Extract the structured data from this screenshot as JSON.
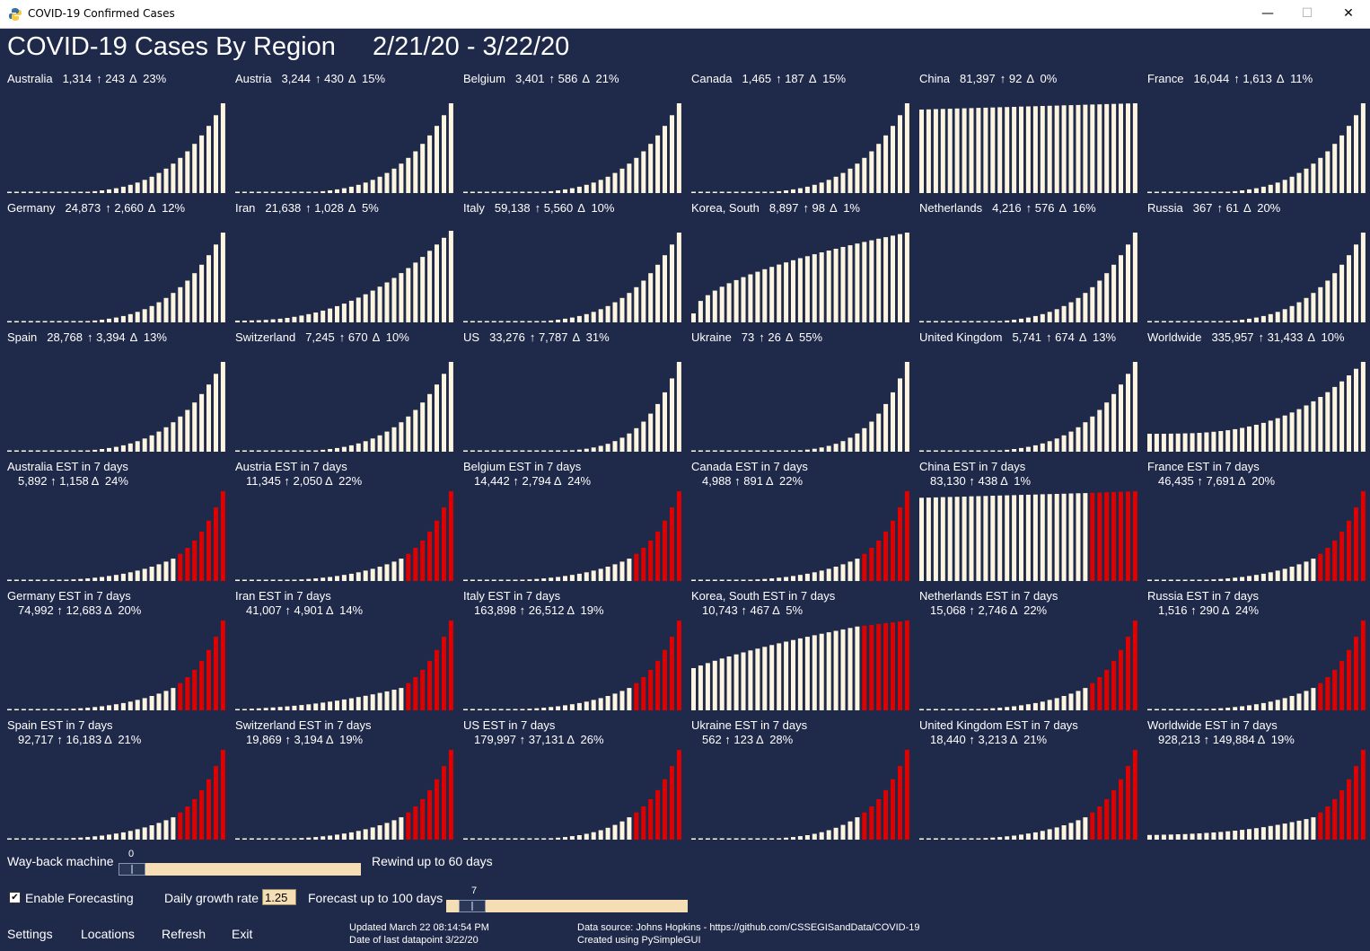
{
  "window": {
    "title": "COVID-19 Confirmed Cases",
    "minimize": "—",
    "maximize": "☐",
    "close": "✕"
  },
  "header": {
    "title": "COVID-19 Cases By Region",
    "date_range": "2/21/20 - 3/22/20"
  },
  "colors": {
    "background": "#1f2a4a",
    "bar": "#fdf5e0",
    "forecast_bar": "#e00000",
    "slider": "#f5deb3"
  },
  "regions": [
    {
      "name": "Australia",
      "cases": "1,314",
      "up": "↑ 243",
      "delta": "Δ  23%"
    },
    {
      "name": "Austria",
      "cases": "3,244",
      "up": "↑ 430",
      "delta": "Δ  15%"
    },
    {
      "name": "Belgium",
      "cases": "3,401",
      "up": "↑ 586",
      "delta": "Δ  21%"
    },
    {
      "name": "Canada",
      "cases": "1,465",
      "up": "↑ 187",
      "delta": "Δ  15%"
    },
    {
      "name": "China",
      "cases": "81,397",
      "up": "↑ 92",
      "delta": "Δ  0%"
    },
    {
      "name": "France",
      "cases": "16,044",
      "up": "↑ 1,613",
      "delta": "Δ  11%"
    },
    {
      "name": "Germany",
      "cases": "24,873",
      "up": "↑ 2,660",
      "delta": "Δ  12%"
    },
    {
      "name": "Iran",
      "cases": "21,638",
      "up": "↑ 1,028",
      "delta": "Δ  5%"
    },
    {
      "name": "Italy",
      "cases": "59,138",
      "up": "↑ 5,560",
      "delta": "Δ  10%"
    },
    {
      "name": "Korea, South",
      "cases": "8,897",
      "up": "↑ 98",
      "delta": "Δ  1%"
    },
    {
      "name": "Netherlands",
      "cases": "4,216",
      "up": "↑ 576",
      "delta": "Δ  16%"
    },
    {
      "name": "Russia",
      "cases": "367",
      "up": "↑ 61",
      "delta": "Δ  20%"
    },
    {
      "name": "Spain",
      "cases": "28,768",
      "up": "↑ 3,394",
      "delta": "Δ  13%"
    },
    {
      "name": "Switzerland",
      "cases": "7,245",
      "up": "↑ 670",
      "delta": "Δ  10%"
    },
    {
      "name": "US",
      "cases": "33,276",
      "up": "↑ 7,787",
      "delta": "Δ  31%"
    },
    {
      "name": "Ukraine",
      "cases": "73",
      "up": "↑ 26",
      "delta": "Δ  55%"
    },
    {
      "name": "United Kingdom",
      "cases": "5,741",
      "up": "↑ 674",
      "delta": "Δ  13%"
    },
    {
      "name": "Worldwide",
      "cases": "335,957",
      "up": "↑ 31,433",
      "delta": "Δ  10%"
    }
  ],
  "forecasts": [
    {
      "name": "Australia EST in 7 days",
      "stats": "5,892 ↑ 1,158 Δ  24%"
    },
    {
      "name": "Austria EST in 7 days",
      "stats": "11,345 ↑ 2,050 Δ  22%"
    },
    {
      "name": "Belgium EST in 7 days",
      "stats": "14,442 ↑ 2,794 Δ  24%"
    },
    {
      "name": "Canada EST in 7 days",
      "stats": "4,988 ↑ 891 Δ  22%"
    },
    {
      "name": "China EST in 7 days",
      "stats": "83,130 ↑ 438 Δ  1%"
    },
    {
      "name": "France EST in 7 days",
      "stats": "46,435 ↑ 7,691 Δ  20%"
    },
    {
      "name": "Germany EST in 7 days",
      "stats": "74,992 ↑ 12,683 Δ  20%"
    },
    {
      "name": "Iran EST in 7 days",
      "stats": "41,007 ↑ 4,901 Δ  14%"
    },
    {
      "name": "Italy EST in 7 days",
      "stats": "163,898 ↑ 26,512 Δ  19%"
    },
    {
      "name": "Korea, South EST in 7 days",
      "stats": "10,743 ↑ 467 Δ  5%"
    },
    {
      "name": "Netherlands EST in 7 days",
      "stats": "15,068 ↑ 2,746 Δ  22%"
    },
    {
      "name": "Russia EST in 7 days",
      "stats": "1,516 ↑ 290 Δ  24%"
    },
    {
      "name": "Spain EST in 7 days",
      "stats": "92,717 ↑ 16,183 Δ  21%"
    },
    {
      "name": "Switzerland EST in 7 days",
      "stats": "19,869 ↑ 3,194 Δ  19%"
    },
    {
      "name": "US EST in 7 days",
      "stats": "179,997 ↑ 37,131 Δ  26%"
    },
    {
      "name": "Ukraine EST in 7 days",
      "stats": "562 ↑ 123 Δ  28%"
    },
    {
      "name": "United Kingdom EST in 7 days",
      "stats": "18,440 ↑ 3,213 Δ  21%"
    },
    {
      "name": "Worldwide EST in 7 days",
      "stats": "928,213 ↑ 149,884 Δ  19%"
    }
  ],
  "controls": {
    "wayback_label": "Way-back machine",
    "wayback_value": "0",
    "wayback_level": 0,
    "rewind_label": "Rewind up to 60 days",
    "forecast_checkbox_label": "Enable Forecasting",
    "forecast_checked": true,
    "growth_label": "Daily growth rate",
    "growth_value": "1.25",
    "forecast_days_label": "Forecast up to 100 days",
    "forecast_days_value": "7",
    "forecast_level": 0.07
  },
  "menu": {
    "settings": "Settings",
    "locations": "Locations",
    "refresh": "Refresh",
    "exit": "Exit"
  },
  "footer": {
    "updated": "Updated March 22 08:14:54 PM",
    "last_datapoint": "Date of last datapoint 3/22/20",
    "source": "Data source: Johns Hopkins - https://github.com/CSSEGISandData/COVID-19",
    "created": "Created using PySimpleGUI"
  }
}
